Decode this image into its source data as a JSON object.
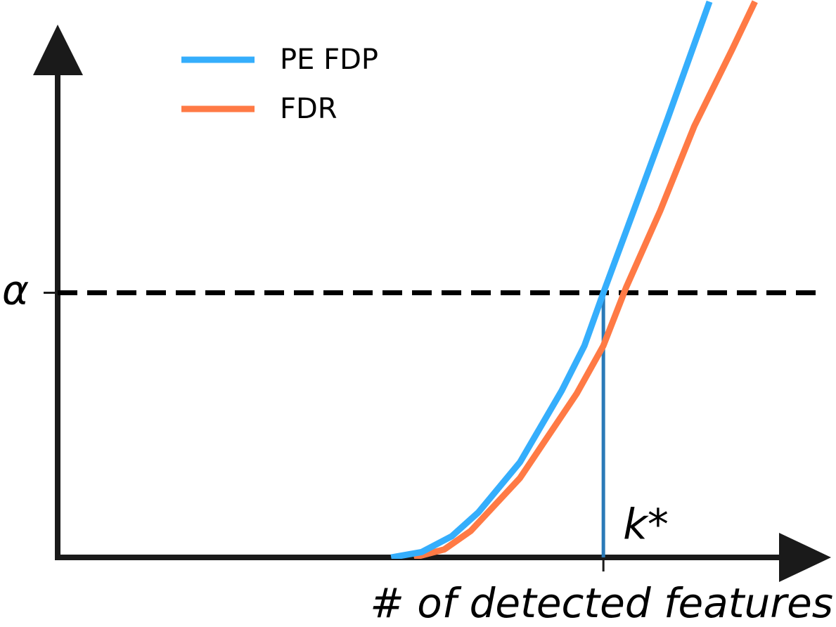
{
  "chart_data": {
    "type": "line",
    "x_label": "# of detected features",
    "xlim": [
      0,
      100
    ],
    "ylim": [
      0,
      100
    ],
    "xticks": [
      {
        "value": 72,
        "label": "k*"
      }
    ],
    "yticks": [
      {
        "value": 50,
        "label": "α"
      }
    ],
    "legend": "upper left",
    "series": [
      {
        "name": "PE FDP",
        "color": "#35aefc",
        "x": [
          44,
          48,
          52,
          55.5,
          61,
          66.5,
          69.5,
          72,
          76,
          80.5,
          86
        ],
        "values": [
          0,
          1,
          4,
          8.5,
          18,
          31.5,
          40,
          50,
          65.5,
          83,
          105
        ]
      },
      {
        "name": "FDR",
        "color": "#ff7a45",
        "x": [
          47,
          51,
          54.5,
          61,
          68.5,
          72,
          75,
          79.5,
          84,
          89,
          92
        ],
        "values": [
          0,
          1.5,
          5,
          15,
          31,
          40,
          51,
          65.5,
          81.5,
          96,
          105
        ]
      }
    ]
  }
}
